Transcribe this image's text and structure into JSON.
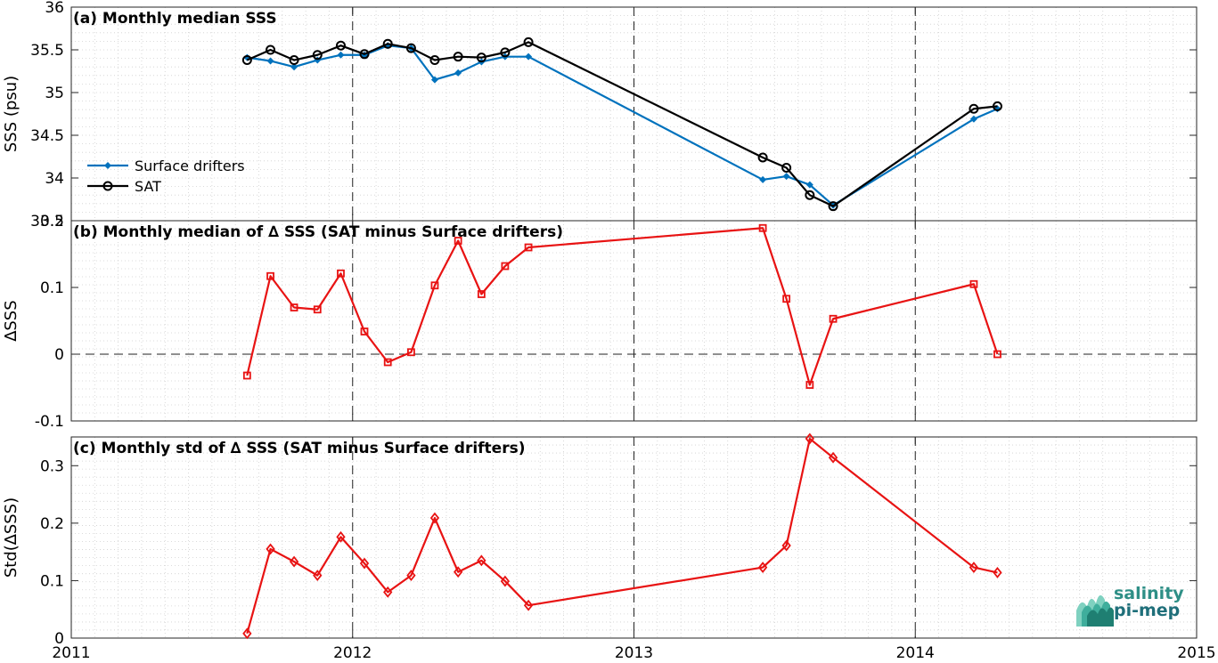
{
  "logo": {
    "line1": "salinity",
    "line2": "pi-mep",
    "color": "#2e9e8e"
  },
  "chart_data": [
    {
      "type": "line",
      "title": "(a) Monthly median SSS",
      "ylabel": "SSS (psu)",
      "xlim": [
        2011,
        2015
      ],
      "ylim": [
        33.5,
        36
      ],
      "yticks": [
        "33.5",
        "34",
        "34.5",
        "35",
        "35.5",
        "36"
      ],
      "grid": true,
      "legend_position": "lower-left",
      "series": [
        {
          "name": "Surface drifters",
          "color": "#0072BD",
          "marker": "dot",
          "x": [
            2011.625,
            2011.708,
            2011.792,
            2011.875,
            2011.958,
            2012.042,
            2012.125,
            2012.208,
            2012.292,
            2012.375,
            2012.458,
            2012.542,
            2012.625,
            2013.458,
            2013.542,
            2013.625,
            2013.708,
            2014.208,
            2014.292
          ],
          "y": [
            35.41,
            35.37,
            35.3,
            35.38,
            35.44,
            35.44,
            35.55,
            35.52,
            35.15,
            35.23,
            35.36,
            35.42,
            35.42,
            33.98,
            34.02,
            33.92,
            33.68,
            34.69,
            34.81
          ]
        },
        {
          "name": "SAT",
          "color": "#000000",
          "marker": "circle",
          "x": [
            2011.625,
            2011.708,
            2011.792,
            2011.875,
            2011.958,
            2012.042,
            2012.125,
            2012.208,
            2012.292,
            2012.375,
            2012.458,
            2012.542,
            2012.625,
            2013.458,
            2013.542,
            2013.625,
            2013.708,
            2014.208,
            2014.292
          ],
          "y": [
            35.38,
            35.5,
            35.38,
            35.44,
            35.55,
            35.45,
            35.57,
            35.52,
            35.38,
            35.42,
            35.41,
            35.47,
            35.59,
            34.24,
            34.12,
            33.8,
            33.67,
            34.81,
            34.84
          ]
        }
      ]
    },
    {
      "type": "line",
      "title": "(b) Monthly median of ∆ SSS (SAT minus Surface drifters)",
      "ylabel": "∆SSS",
      "xlim": [
        2011,
        2015
      ],
      "ylim": [
        -0.1,
        0.2
      ],
      "yticks": [
        "-0.1",
        "0",
        "0.1",
        "0.2"
      ],
      "zero_line": true,
      "grid": true,
      "series": [
        {
          "color": "#e81313",
          "marker": "square",
          "x": [
            2011.625,
            2011.708,
            2011.792,
            2011.875,
            2011.958,
            2012.042,
            2012.125,
            2012.208,
            2012.292,
            2012.375,
            2012.458,
            2012.542,
            2012.625,
            2013.458,
            2013.542,
            2013.625,
            2013.708,
            2014.208,
            2014.292
          ],
          "y": [
            -0.032,
            0.117,
            0.07,
            0.067,
            0.121,
            0.034,
            -0.012,
            0.003,
            0.103,
            0.17,
            0.09,
            0.132,
            0.16,
            0.189,
            0.083,
            -0.046,
            0.053,
            0.105,
            0.0
          ]
        }
      ]
    },
    {
      "type": "line",
      "title": "(c) Monthly std of ∆ SSS (SAT minus Surface drifters)",
      "ylabel": "Std(∆SSS)",
      "xlim": [
        2011,
        2015
      ],
      "ylim": [
        0,
        0.35
      ],
      "yticks": [
        "0",
        "0.1",
        "0.2",
        "0.3"
      ],
      "xticks": [
        "2011",
        "2012",
        "2013",
        "2014",
        "2015"
      ],
      "grid": true,
      "series": [
        {
          "color": "#e81313",
          "marker": "diamond",
          "x": [
            2011.625,
            2011.708,
            2011.792,
            2011.875,
            2011.958,
            2012.042,
            2012.125,
            2012.208,
            2012.292,
            2012.375,
            2012.458,
            2012.542,
            2012.625,
            2013.458,
            2013.542,
            2013.625,
            2013.708,
            2014.208,
            2014.292
          ],
          "y": [
            0.008,
            0.155,
            0.133,
            0.109,
            0.176,
            0.13,
            0.08,
            0.109,
            0.209,
            0.115,
            0.135,
            0.099,
            0.057,
            0.123,
            0.161,
            0.347,
            0.314,
            0.123,
            0.114
          ]
        }
      ]
    }
  ]
}
